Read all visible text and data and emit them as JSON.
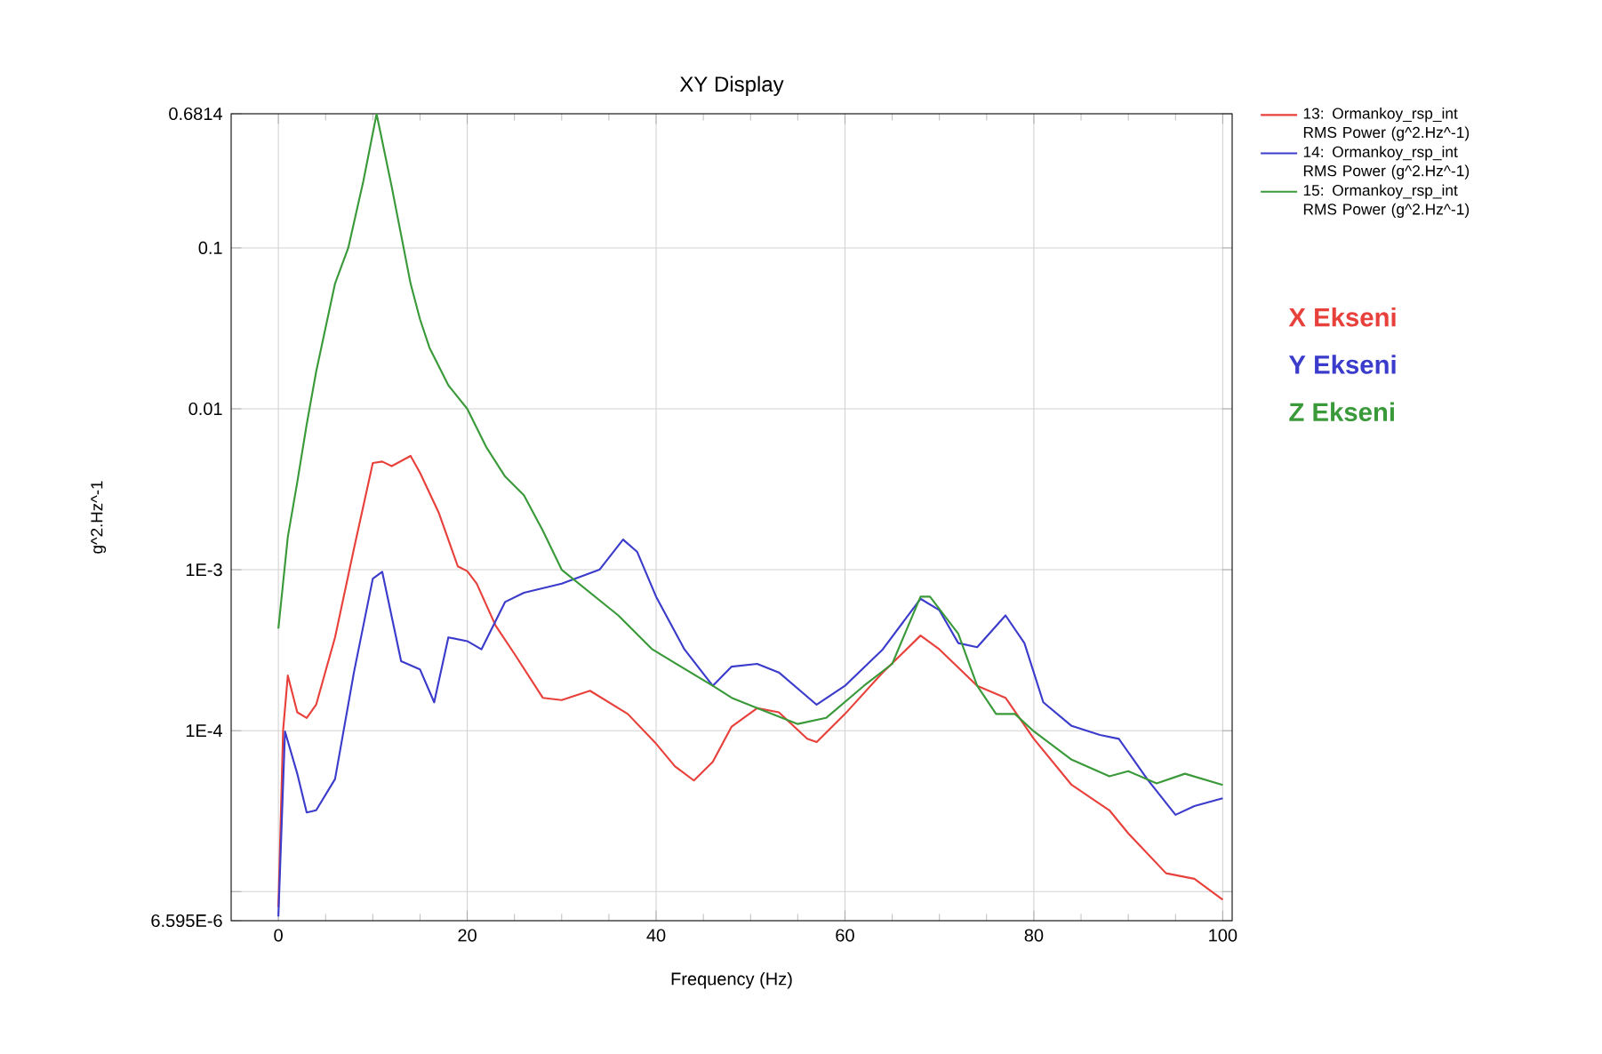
{
  "chart_data": {
    "type": "line",
    "title": "XY Display",
    "xlabel": "Frequency (Hz)",
    "ylabel": "g^2.Hz^-1",
    "log": "y",
    "grid": true,
    "legend": "top right",
    "xlim": [
      -5,
      101
    ],
    "ylim": [
      6.595e-06,
      0.6814
    ],
    "xticks": [
      0,
      20,
      40,
      60,
      80,
      100
    ],
    "yticks": [
      {
        "value": 6.595e-06,
        "label": "6.595E-6"
      },
      {
        "value": 1e-05,
        "label": null
      },
      {
        "value": 0.0001,
        "label": "1E-4"
      },
      {
        "value": 0.001,
        "label": "1E-3"
      },
      {
        "value": 0.01,
        "label": "0.01"
      },
      {
        "value": 0.1,
        "label": "0.1"
      },
      {
        "value": 0.6814,
        "label": "0.6814"
      }
    ],
    "annotations": [
      "X Ekseni",
      "Y Ekseni",
      "Z Ekseni"
    ],
    "series": [
      {
        "name": "13: Ormankoy_rsp_int RMS Power (g^2.Hz^-1)",
        "color": "#e8413c",
        "x": [
          0,
          0.5,
          1,
          2,
          3,
          4,
          6,
          8,
          10,
          11,
          12,
          14,
          15,
          17,
          19,
          20,
          21,
          23,
          25,
          28,
          30,
          33,
          37,
          40,
          42,
          44,
          46,
          48,
          50.7,
          53,
          56,
          57,
          60,
          64,
          68,
          70,
          74,
          77,
          80,
          84,
          88,
          90,
          94,
          97,
          100
        ],
        "values": [
          8e-06,
          0.0001,
          0.00022,
          0.00013,
          0.00012,
          0.000145,
          0.00038,
          0.00135,
          0.0046,
          0.0047,
          0.0044,
          0.0051,
          0.004,
          0.00225,
          0.00105,
          0.00098,
          0.00082,
          0.00045,
          0.0003,
          0.00016,
          0.000155,
          0.000177,
          0.000127,
          8.3e-05,
          6e-05,
          4.9e-05,
          6.4e-05,
          0.000106,
          0.000138,
          0.00013,
          8.9e-05,
          8.5e-05,
          0.000127,
          0.00023,
          0.00039,
          0.00032,
          0.00019,
          0.00016,
          8.9e-05,
          4.6e-05,
          3.2e-05,
          2.3e-05,
          1.3e-05,
          1.2e-05,
          8.9e-06
        ]
      },
      {
        "name": "14: Ormankoy_rsp_int RMS Power (g^2.Hz^-1)",
        "color": "#3b3bcc",
        "x": [
          0,
          0.7,
          2,
          3,
          4,
          6,
          8,
          10,
          11,
          13,
          15,
          16.5,
          18,
          20,
          21.5,
          24,
          26,
          30,
          34,
          36.5,
          38,
          40,
          43,
          46,
          48,
          50.7,
          53,
          57,
          60,
          64,
          68,
          70,
          72,
          74,
          77,
          79,
          81,
          84,
          87,
          89,
          92,
          95,
          97,
          100
        ],
        "values": [
          7e-06,
          9.9e-05,
          5.4e-05,
          3.1e-05,
          3.2e-05,
          5e-05,
          0.00023,
          0.00088,
          0.00097,
          0.00027,
          0.00024,
          0.00015,
          0.00038,
          0.00036,
          0.00032,
          0.00063,
          0.00072,
          0.00082,
          0.001,
          0.00154,
          0.00129,
          0.00068,
          0.00032,
          0.00019,
          0.00025,
          0.00026,
          0.00023,
          0.000145,
          0.00019,
          0.00032,
          0.00066,
          0.00056,
          0.00035,
          0.00033,
          0.00052,
          0.00035,
          0.00015,
          0.000107,
          9.4e-05,
          8.9e-05,
          5e-05,
          3e-05,
          3.4e-05,
          3.8e-05
        ]
      },
      {
        "name": "15: Ormankoy_rsp_int RMS Power (g^2.Hz^-1)",
        "color": "#3a9a3a",
        "x": [
          0,
          1,
          2,
          3,
          4,
          6,
          7.4,
          9,
          10.4,
          12,
          13,
          14,
          15,
          16,
          18,
          20,
          22,
          24,
          26,
          28,
          30,
          36,
          39.6,
          46,
          48,
          50.7,
          55,
          58,
          62,
          65,
          68,
          69,
          72,
          74,
          76,
          78,
          80,
          84,
          88,
          90,
          93,
          96,
          100
        ],
        "values": [
          0.00043,
          0.0016,
          0.0035,
          0.008,
          0.017,
          0.06,
          0.1,
          0.26,
          0.68,
          0.24,
          0.12,
          0.06,
          0.036,
          0.024,
          0.014,
          0.01,
          0.0058,
          0.0038,
          0.0029,
          0.00175,
          0.001,
          0.00052,
          0.00032,
          0.00019,
          0.00016,
          0.000138,
          0.00011,
          0.00012,
          0.00019,
          0.00026,
          0.00068,
          0.00068,
          0.0004,
          0.00019,
          0.000127,
          0.000127,
          9.9e-05,
          6.6e-05,
          5.2e-05,
          5.6e-05,
          4.7e-05,
          5.4e-05,
          4.6e-05
        ]
      }
    ]
  }
}
